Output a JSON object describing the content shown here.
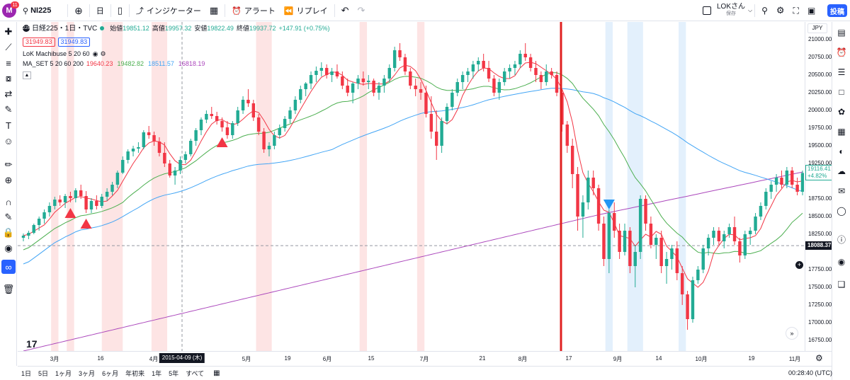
{
  "topbar": {
    "avatar_letter": "M",
    "avatar_badge": "11",
    "symbol": "NI225",
    "interval": "日",
    "indicators_label": "インジケーター",
    "alert_label": "アラート",
    "replay_label": "リプレイ",
    "layout_name": "LOKさん",
    "layout_sub": "保存",
    "publish_label": "投稿"
  },
  "legend": {
    "title": "日経225・1日・TVC",
    "symbol_badge": "225",
    "open_k": "始値",
    "open_v": "19851.12",
    "high_k": "高値",
    "high_v": "19957.32",
    "low_k": "安値",
    "low_v": "19822.49",
    "close_k": "終値",
    "close_v": "19937.72",
    "change": "+147.91 (+0.75%)",
    "bid": "31949.83",
    "ask": "31949.83",
    "indicator1": "LoK Machibuse 5 20 60",
    "indicator2": "MA_SET 5 20 60 200",
    "ma5": "19640.23",
    "ma20": "19482.82",
    "ma60": "18511.57",
    "ma200": "16818.19"
  },
  "currency": "JPY",
  "price_axis": {
    "labels": [
      "21000.00",
      "20750.00",
      "20500.00",
      "20250.00",
      "20000.00",
      "19750.00",
      "19500.00",
      "19250.00",
      "18750.00",
      "18500.00",
      "18250.00",
      "17750.00",
      "17500.00",
      "17250.00",
      "17000.00",
      "16750.00"
    ],
    "current_price": "19116.41",
    "current_change": "+4.82%",
    "crosshair_price": "18088.37"
  },
  "time_axis": {
    "labels": [
      "3月",
      "16",
      "4月",
      "5月",
      "19",
      "6月",
      "15",
      "7月",
      "21",
      "8月",
      "17",
      "9月",
      "14",
      "10月",
      "19",
      "11月"
    ],
    "crosshair_date": "2015-04-09 (木)"
  },
  "bottombar": {
    "ranges": [
      "1日",
      "5日",
      "1ヶ月",
      "3ヶ月",
      "6ヶ月",
      "年初来",
      "1年",
      "5年",
      "すべて"
    ],
    "clock": "00:28:40 (UTC)"
  },
  "colors": {
    "up": "#22ab94",
    "down": "#f23645",
    "ma5": "#f23645",
    "ma20": "#4caf50",
    "ma60": "#42a5f5",
    "ma200": "#ab47bc",
    "accent": "#2962ff",
    "red_vline": "#e02020"
  },
  "chart_data": {
    "type": "candlestick",
    "symbol": "NI225",
    "timeframe": "1D",
    "ylim": [
      16600,
      21250
    ],
    "grid": false,
    "highlight_days": [
      "2015-03-03",
      "2015-03-06",
      "2015-04-02",
      "2015-04-03",
      "2015-04-27",
      "2015-04-28",
      "2015-06-11",
      "2015-07-29",
      "2015-08-24",
      "2015-09-07",
      "2015-09-24",
      "2015-09-25",
      "2015-10-06"
    ],
    "ohlc_series": [
      {
        "name": "NI225",
        "points": [
          [
            18200,
            18260,
            18150,
            18230
          ],
          [
            18230,
            18300,
            18180,
            18270
          ],
          [
            18270,
            18400,
            18250,
            18380
          ],
          [
            18380,
            18500,
            18300,
            18470
          ],
          [
            18470,
            18600,
            18400,
            18560
          ],
          [
            18560,
            18700,
            18500,
            18650
          ],
          [
            18650,
            18780,
            18600,
            18740
          ],
          [
            18740,
            18800,
            18650,
            18700
          ],
          [
            18700,
            18820,
            18620,
            18790
          ],
          [
            18790,
            18850,
            18700,
            18760
          ],
          [
            18760,
            18900,
            18700,
            18870
          ],
          [
            18870,
            18950,
            18750,
            18790
          ],
          [
            18790,
            18860,
            18550,
            18600
          ],
          [
            18600,
            18760,
            18550,
            18720
          ],
          [
            18720,
            18800,
            18600,
            18650
          ],
          [
            18650,
            18820,
            18620,
            18780
          ],
          [
            18780,
            18900,
            18720,
            18850
          ],
          [
            18850,
            18990,
            18800,
            18950
          ],
          [
            18950,
            19150,
            18900,
            19120
          ],
          [
            19120,
            19350,
            19100,
            19300
          ],
          [
            19300,
            19450,
            19250,
            19420
          ],
          [
            19420,
            19500,
            19350,
            19460
          ],
          [
            19460,
            19550,
            19400,
            19480
          ],
          [
            19480,
            19720,
            19450,
            19690
          ],
          [
            19690,
            19780,
            19600,
            19650
          ],
          [
            19650,
            19700,
            19500,
            19560
          ],
          [
            19560,
            19620,
            19350,
            19400
          ],
          [
            19400,
            19550,
            19200,
            19250
          ],
          [
            19250,
            19300,
            19050,
            19080
          ],
          [
            19080,
            19200,
            18950,
            19150
          ],
          [
            19150,
            19350,
            19100,
            19300
          ],
          [
            19300,
            19420,
            19250,
            19380
          ],
          [
            19380,
            19600,
            19350,
            19570
          ],
          [
            19570,
            19750,
            19500,
            19720
          ],
          [
            19720,
            19900,
            19650,
            19870
          ],
          [
            19870,
            20000,
            19820,
            19950
          ],
          [
            19950,
            20050,
            19880,
            19920
          ],
          [
            19920,
            19980,
            19800,
            19850
          ],
          [
            19850,
            19900,
            19700,
            19760
          ],
          [
            19760,
            19850,
            19600,
            19650
          ],
          [
            19650,
            19850,
            19600,
            19820
          ],
          [
            19820,
            20050,
            19780,
            20000
          ],
          [
            20000,
            20200,
            19950,
            20150
          ],
          [
            20150,
            20300,
            20050,
            20100
          ],
          [
            20100,
            20150,
            19850,
            19900
          ],
          [
            19900,
            19950,
            19650,
            19700
          ],
          [
            19700,
            19750,
            19400,
            19450
          ],
          [
            19450,
            19550,
            19350,
            19500
          ],
          [
            19500,
            19700,
            19450,
            19650
          ],
          [
            19650,
            19800,
            19600,
            19750
          ],
          [
            19750,
            19920,
            19700,
            19880
          ],
          [
            19880,
            20050,
            19820,
            20000
          ],
          [
            20000,
            20200,
            19950,
            20150
          ],
          [
            20150,
            20350,
            20100,
            20300
          ],
          [
            20300,
            20400,
            20200,
            20380
          ],
          [
            20380,
            20550,
            20300,
            20500
          ],
          [
            20500,
            20620,
            20400,
            20560
          ],
          [
            20560,
            20680,
            20480,
            20600
          ],
          [
            20600,
            20650,
            20450,
            20500
          ],
          [
            20500,
            20600,
            20400,
            20550
          ],
          [
            20550,
            20650,
            20450,
            20480
          ],
          [
            20480,
            20550,
            20300,
            20350
          ],
          [
            20350,
            20450,
            20200,
            20250
          ],
          [
            20250,
            20400,
            20100,
            20380
          ],
          [
            20380,
            20500,
            20300,
            20450
          ],
          [
            20450,
            20550,
            20350,
            20400
          ],
          [
            20400,
            20500,
            20300,
            20420
          ],
          [
            20420,
            20450,
            20200,
            20250
          ],
          [
            20250,
            20400,
            20150,
            20350
          ],
          [
            20350,
            20500,
            20250,
            20450
          ],
          [
            20450,
            20650,
            20400,
            20600
          ],
          [
            20600,
            20900,
            20550,
            20850
          ],
          [
            20850,
            20950,
            20700,
            20750
          ],
          [
            20750,
            20800,
            20500,
            20550
          ],
          [
            20550,
            20600,
            20300,
            20350
          ],
          [
            20350,
            20450,
            20200,
            20300
          ],
          [
            20300,
            20400,
            20150,
            20250
          ],
          [
            20250,
            20350,
            19900,
            19950
          ],
          [
            19950,
            20200,
            19600,
            19700
          ],
          [
            19700,
            20000,
            19300,
            19500
          ],
          [
            19500,
            19900,
            19400,
            19850
          ],
          [
            19850,
            20100,
            19800,
            20050
          ],
          [
            20050,
            20300,
            20000,
            20250
          ],
          [
            20250,
            20450,
            20200,
            20400
          ],
          [
            20400,
            20550,
            20300,
            20500
          ],
          [
            20500,
            20600,
            20400,
            20550
          ],
          [
            20550,
            20700,
            20450,
            20650
          ],
          [
            20650,
            20750,
            20550,
            20700
          ],
          [
            20700,
            20800,
            20550,
            20600
          ],
          [
            20600,
            20700,
            20400,
            20450
          ],
          [
            20450,
            20500,
            20200,
            20250
          ],
          [
            20250,
            20450,
            20150,
            20400
          ],
          [
            20400,
            20600,
            20350,
            20550
          ],
          [
            20550,
            20650,
            20450,
            20600
          ],
          [
            20600,
            20700,
            20500,
            20650
          ],
          [
            20650,
            20850,
            20600,
            20800
          ],
          [
            20800,
            20950,
            20700,
            20750
          ],
          [
            20750,
            20800,
            20550,
            20600
          ],
          [
            20600,
            20700,
            20400,
            20500
          ],
          [
            20500,
            20550,
            20300,
            20400
          ],
          [
            20400,
            20650,
            20350,
            20550
          ],
          [
            20550,
            20600,
            20450,
            20500
          ],
          [
            20500,
            20550,
            20200,
            20250
          ],
          [
            20250,
            20300,
            19700,
            19800
          ],
          [
            19800,
            19850,
            19400,
            19500
          ],
          [
            19500,
            19600,
            18900,
            19100
          ],
          [
            19100,
            19200,
            18300,
            18500
          ],
          [
            18500,
            18800,
            18200,
            18700
          ],
          [
            18700,
            19150,
            18600,
            19050
          ],
          [
            19050,
            19150,
            18800,
            18900
          ],
          [
            18900,
            18950,
            18300,
            18400
          ],
          [
            18400,
            18500,
            17800,
            17900
          ],
          [
            17900,
            18600,
            17700,
            18550
          ],
          [
            18550,
            18700,
            18200,
            18300
          ],
          [
            18300,
            18400,
            17900,
            18000
          ],
          [
            18000,
            18400,
            17950,
            18300
          ],
          [
            18300,
            18350,
            17700,
            17800
          ],
          [
            17800,
            18100,
            17500,
            18000
          ],
          [
            18000,
            18800,
            17900,
            18750
          ],
          [
            18750,
            18800,
            18300,
            18400
          ],
          [
            18400,
            18500,
            18050,
            18100
          ],
          [
            18100,
            18250,
            17900,
            18200
          ],
          [
            18200,
            18300,
            17700,
            17800
          ],
          [
            17800,
            18000,
            17550,
            17900
          ],
          [
            17900,
            18100,
            17750,
            18050
          ],
          [
            18050,
            18150,
            17600,
            17700
          ],
          [
            17700,
            17800,
            17250,
            17400
          ],
          [
            17400,
            17450,
            16900,
            17050
          ],
          [
            17050,
            17650,
            17000,
            17600
          ],
          [
            17600,
            17800,
            17550,
            17750
          ],
          [
            17750,
            18100,
            17700,
            18050
          ],
          [
            18050,
            18250,
            17950,
            18200
          ],
          [
            18200,
            18350,
            18100,
            18300
          ],
          [
            18300,
            18350,
            18100,
            18150
          ],
          [
            18150,
            18300,
            18050,
            18250
          ],
          [
            18250,
            18400,
            18200,
            18350
          ],
          [
            18350,
            18500,
            18100,
            18150
          ],
          [
            18150,
            18200,
            17850,
            17950
          ],
          [
            17950,
            18300,
            17900,
            18250
          ],
          [
            18250,
            18350,
            18100,
            18300
          ],
          [
            18300,
            18550,
            18250,
            18500
          ],
          [
            18500,
            18700,
            18450,
            18650
          ],
          [
            18650,
            18900,
            18600,
            18850
          ],
          [
            18850,
            19000,
            18750,
            18950
          ],
          [
            18950,
            19100,
            18850,
            19050
          ],
          [
            19050,
            19150,
            18900,
            18950
          ],
          [
            18950,
            19200,
            18900,
            19150
          ],
          [
            19150,
            19200,
            18900,
            18950
          ],
          [
            18950,
            19050,
            18800,
            18850
          ],
          [
            18850,
            19150,
            18800,
            19116
          ]
        ]
      }
    ],
    "signals": [
      {
        "type": "buy",
        "index": 9
      },
      {
        "type": "buy",
        "index": 12
      },
      {
        "type": "buy",
        "index": 38
      },
      {
        "type": "sell",
        "index": 112
      }
    ]
  }
}
